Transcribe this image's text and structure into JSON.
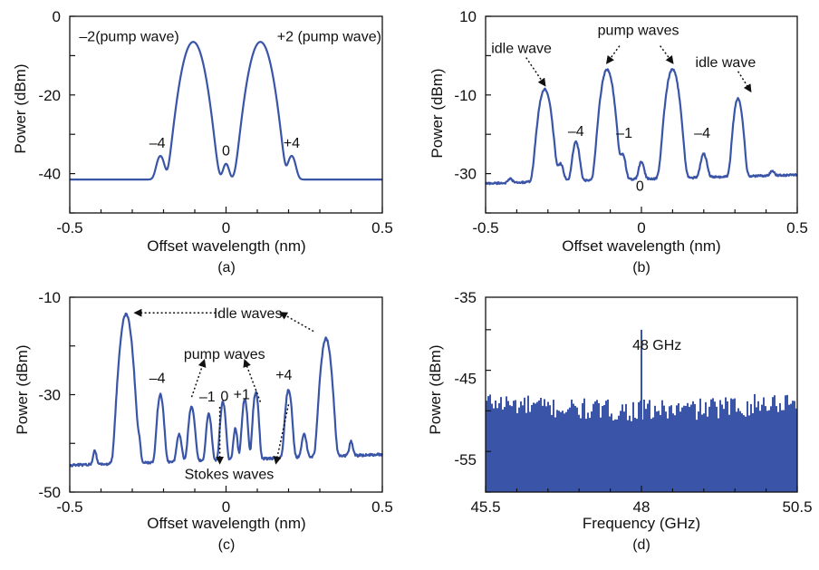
{
  "colors": {
    "line": "#3a55a8",
    "axis": "#111111",
    "text": "#111111"
  },
  "chart_data": [
    {
      "id": "a",
      "type": "line",
      "caption": "(a)",
      "xlabel": "Offset wavelength (nm)",
      "ylabel": "Power (dBm)",
      "xlim": [
        -0.5,
        0.5
      ],
      "ylim": [
        -50,
        0
      ],
      "xticks": [
        -0.5,
        0,
        0.5
      ],
      "xtick_labels": [
        "-0.5",
        "0",
        "0.5"
      ],
      "yticks": [
        -40,
        -20,
        0
      ],
      "ytick_labels": [
        "-40",
        "-20",
        "0"
      ],
      "baseline": -41.5,
      "series": [
        {
          "peaks": [
            {
              "x": -0.21,
              "y": -35.5,
              "w": 0.01
            },
            {
              "x": -0.105,
              "y": -6.5,
              "w": 0.02
            },
            {
              "x": 0.0,
              "y": -37.5,
              "w": 0.008
            },
            {
              "x": 0.11,
              "y": -6.5,
              "w": 0.02
            },
            {
              "x": 0.21,
              "y": -35.5,
              "w": 0.01
            }
          ]
        }
      ],
      "annotations": [
        {
          "text": "–2(pump wave)",
          "x": -0.31,
          "y": -5
        },
        {
          "text": "+2 (pump wave)",
          "x": 0.33,
          "y": -5
        },
        {
          "text": "–4",
          "x": -0.22,
          "y": -32
        },
        {
          "text": "0",
          "x": 0.0,
          "y": -34
        },
        {
          "text": "+4",
          "x": 0.21,
          "y": -32
        }
      ],
      "arrows": []
    },
    {
      "id": "b",
      "type": "line",
      "caption": "(b)",
      "xlabel": "Offset wavelength (nm)",
      "ylabel": "Power (dBm)",
      "xlim": [
        -0.5,
        0.5
      ],
      "ylim": [
        -40,
        10
      ],
      "xticks": [
        -0.5,
        0,
        0.5
      ],
      "xtick_labels": [
        "-0.5",
        "0",
        "0.5"
      ],
      "yticks": [
        -30,
        -10,
        10
      ],
      "ytick_labels": [
        "-30",
        "-10",
        "10"
      ],
      "baseline_start": -32.5,
      "baseline_end": -30.3,
      "series": [
        {
          "peaks": [
            {
              "x": -0.42,
              "y": -31.3,
              "w": 0.006
            },
            {
              "x": -0.31,
              "y": -8.5,
              "w": 0.012
            },
            {
              "x": -0.26,
              "y": -27.5,
              "w": 0.008
            },
            {
              "x": -0.21,
              "y": -22,
              "w": 0.008
            },
            {
              "x": -0.11,
              "y": -3.5,
              "w": 0.012
            },
            {
              "x": -0.06,
              "y": -25,
              "w": 0.007
            },
            {
              "x": 0.0,
              "y": -27,
              "w": 0.007
            },
            {
              "x": 0.1,
              "y": -3.5,
              "w": 0.012
            },
            {
              "x": 0.2,
              "y": -25,
              "w": 0.008
            },
            {
              "x": 0.31,
              "y": -11,
              "w": 0.009
            },
            {
              "x": 0.42,
              "y": -29.3,
              "w": 0.006
            }
          ]
        }
      ],
      "annotations": [
        {
          "text": "idle wave",
          "x": -0.385,
          "y": 2
        },
        {
          "text": "pump waves",
          "x": -0.01,
          "y": 6.7
        },
        {
          "text": "idle wave",
          "x": 0.27,
          "y": -1.5
        },
        {
          "text": "–4",
          "x": -0.21,
          "y": -19
        },
        {
          "text": "–1",
          "x": -0.055,
          "y": -19.5
        },
        {
          "text": "0",
          "x": -0.005,
          "y": -33
        },
        {
          "text": "–4",
          "x": 0.195,
          "y": -19.5
        }
      ],
      "arrows": [
        {
          "from": [
            -0.37,
            -0.5
          ],
          "to": [
            -0.31,
            -7.5
          ]
        },
        {
          "from": [
            -0.07,
            2.5
          ],
          "to": [
            -0.11,
            -1.8
          ]
        },
        {
          "from": [
            0.06,
            2.5
          ],
          "to": [
            0.1,
            -1.8
          ]
        },
        {
          "from": [
            0.31,
            -4
          ],
          "to": [
            0.35,
            -9
          ]
        }
      ]
    },
    {
      "id": "c",
      "type": "line",
      "caption": "(c)",
      "xlabel": "Offset wavelength (nm)",
      "ylabel": "Power (dBm)",
      "xlim": [
        -0.5,
        0.5
      ],
      "ylim": [
        -50,
        -10
      ],
      "xticks": [
        -0.5,
        0,
        0.5
      ],
      "xtick_labels": [
        "-0.5",
        "0",
        "0.5"
      ],
      "yticks": [
        -50,
        -30,
        -10
      ],
      "ytick_labels": [
        "-50",
        "-30",
        "-10"
      ],
      "baseline_start": -44.5,
      "baseline_end": -42.3,
      "series": [
        {
          "peaks": [
            {
              "x": -0.42,
              "y": -41.5,
              "w": 0.005
            },
            {
              "x": -0.32,
              "y": -13.5,
              "w": 0.011
            },
            {
              "x": -0.28,
              "y": -39,
              "w": 0.005
            },
            {
              "x": -0.21,
              "y": -30,
              "w": 0.007
            },
            {
              "x": -0.15,
              "y": -38,
              "w": 0.006
            },
            {
              "x": -0.11,
              "y": -32.5,
              "w": 0.007
            },
            {
              "x": -0.055,
              "y": -34,
              "w": 0.006
            },
            {
              "x": -0.01,
              "y": -31.5,
              "w": 0.006
            },
            {
              "x": 0.03,
              "y": -37,
              "w": 0.005
            },
            {
              "x": 0.06,
              "y": -31,
              "w": 0.006
            },
            {
              "x": 0.095,
              "y": -29.5,
              "w": 0.006
            },
            {
              "x": 0.2,
              "y": -29,
              "w": 0.007
            },
            {
              "x": 0.25,
              "y": -38,
              "w": 0.006
            },
            {
              "x": 0.32,
              "y": -18.5,
              "w": 0.01
            },
            {
              "x": 0.4,
              "y": -39.5,
              "w": 0.005
            }
          ]
        }
      ],
      "annotations": [
        {
          "text": "Idle waves",
          "x": 0.07,
          "y": -13.2
        },
        {
          "text": "pump waves",
          "x": -0.005,
          "y": -21.5
        },
        {
          "text": "–4",
          "x": -0.22,
          "y": -26.5
        },
        {
          "text": "–1",
          "x": -0.06,
          "y": -30.3
        },
        {
          "text": "0",
          "x": -0.005,
          "y": -30.2
        },
        {
          "text": "+1",
          "x": 0.05,
          "y": -29.8
        },
        {
          "text": "+4",
          "x": 0.185,
          "y": -25.8
        },
        {
          "text": "Stokes waves",
          "x": 0.01,
          "y": -46.2
        }
      ],
      "arrows": [
        {
          "from": [
            -0.02,
            -13.2
          ],
          "to": [
            -0.29,
            -13.2
          ]
        },
        {
          "from": [
            0.28,
            -17
          ],
          "to": [
            0.175,
            -13.2
          ]
        },
        {
          "from": [
            -0.11,
            -30.5
          ],
          "to": [
            -0.07,
            -23
          ]
        },
        {
          "from": [
            0.11,
            -31.5
          ],
          "to": [
            0.06,
            -23
          ]
        },
        {
          "from": [
            -0.02,
            -32.5
          ],
          "to": [
            -0.02,
            -44
          ]
        },
        {
          "from": [
            0.2,
            -32
          ],
          "to": [
            0.16,
            -44
          ]
        }
      ]
    },
    {
      "id": "d",
      "type": "bar",
      "caption": "(d)",
      "xlabel": "Frequency (GHz)",
      "ylabel": "Power (dBm)",
      "xlim": [
        45.5,
        50.5
      ],
      "ylim": [
        -59,
        -35
      ],
      "xticks": [
        45.5,
        48,
        50.5
      ],
      "xtick_labels": [
        "45.5",
        "48",
        "50.5"
      ],
      "yticks": [
        -55,
        -45,
        -35
      ],
      "ytick_labels": [
        "-55",
        "-45",
        "-35"
      ],
      "noise_floor_level": -50,
      "noise_top_range": [
        -49.5,
        -46.8
      ],
      "spike": {
        "x": 48,
        "y": -39
      },
      "annotations": [
        {
          "text": "48 GHz",
          "x": 48.25,
          "y": -40.8
        }
      ],
      "arrows": []
    }
  ]
}
